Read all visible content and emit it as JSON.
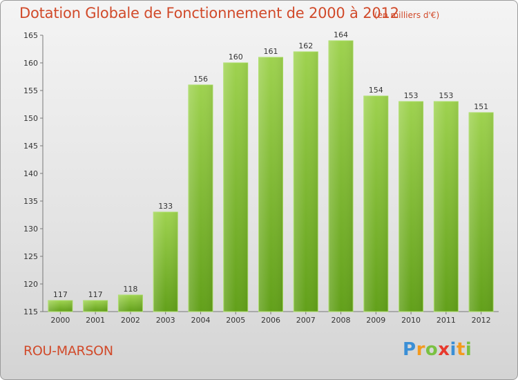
{
  "chart_data": {
    "type": "bar",
    "title": "Dotation Globale de Fonctionnement de 2000 à 2012",
    "subtitle": "(en milliers d'€)",
    "categories": [
      "2000",
      "2001",
      "2002",
      "2003",
      "2004",
      "2005",
      "2006",
      "2007",
      "2008",
      "2009",
      "2010",
      "2011",
      "2012"
    ],
    "values": [
      117,
      117,
      118,
      133,
      156,
      160,
      161,
      162,
      164,
      154,
      153,
      153,
      151
    ],
    "ylim": [
      115,
      165
    ],
    "yticks": [
      115,
      120,
      125,
      130,
      135,
      140,
      145,
      150,
      155,
      160,
      165
    ],
    "grid": false,
    "bar_color": "#8cc63f"
  },
  "footer": {
    "place": "ROU-MARSON",
    "logo_letters": [
      "P",
      "r",
      "o",
      "x",
      "i",
      "t",
      "i"
    ],
    "logo_colors": [
      "#3a8fd6",
      "#f39a1e",
      "#7ac142",
      "#e8392d",
      "#3a8fd6",
      "#f39a1e",
      "#7ac142"
    ]
  }
}
